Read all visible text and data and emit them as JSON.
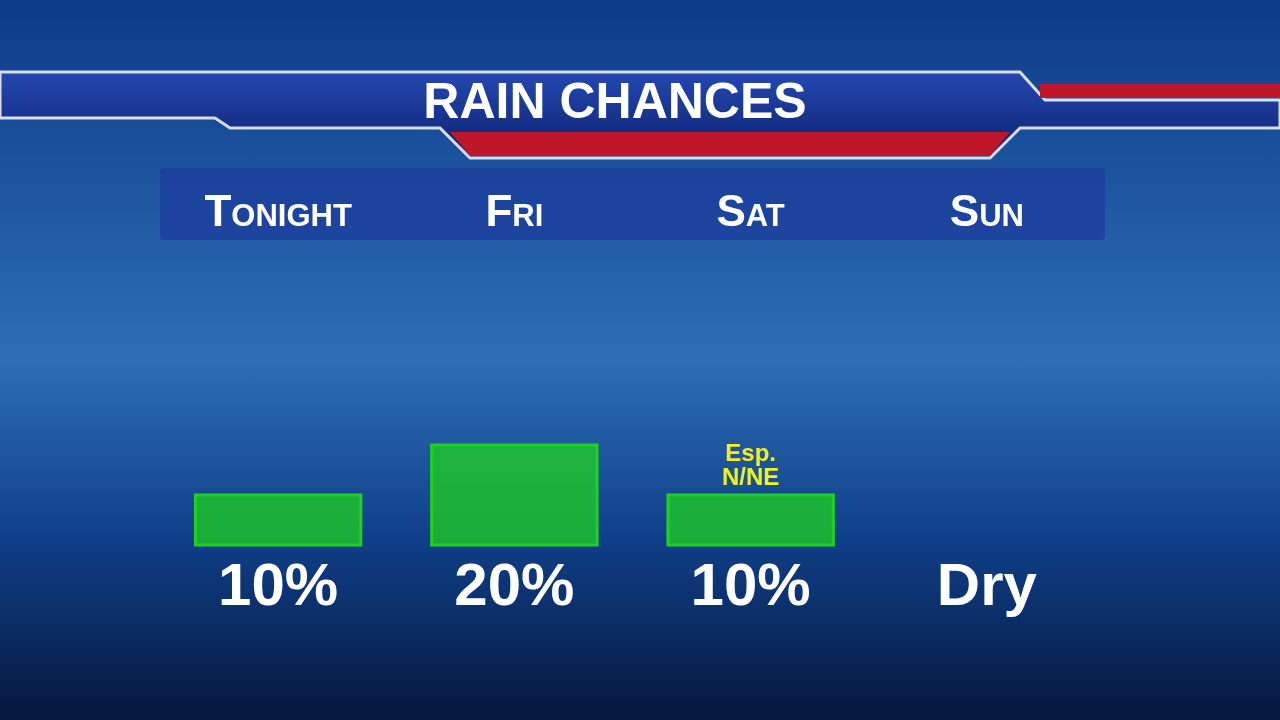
{
  "chart_data": {
    "type": "bar",
    "title": "RAIN CHANCES",
    "categories": [
      "Tonight",
      "Fri",
      "Sat",
      "Sun"
    ],
    "values": [
      10,
      20,
      10,
      0
    ],
    "value_labels": [
      "10%",
      "20%",
      "10%",
      "Dry"
    ],
    "color": "#1fd21f",
    "annotations": [
      {
        "text": "Esp. N/NE",
        "x": "Sat",
        "y": 10
      }
    ]
  }
}
